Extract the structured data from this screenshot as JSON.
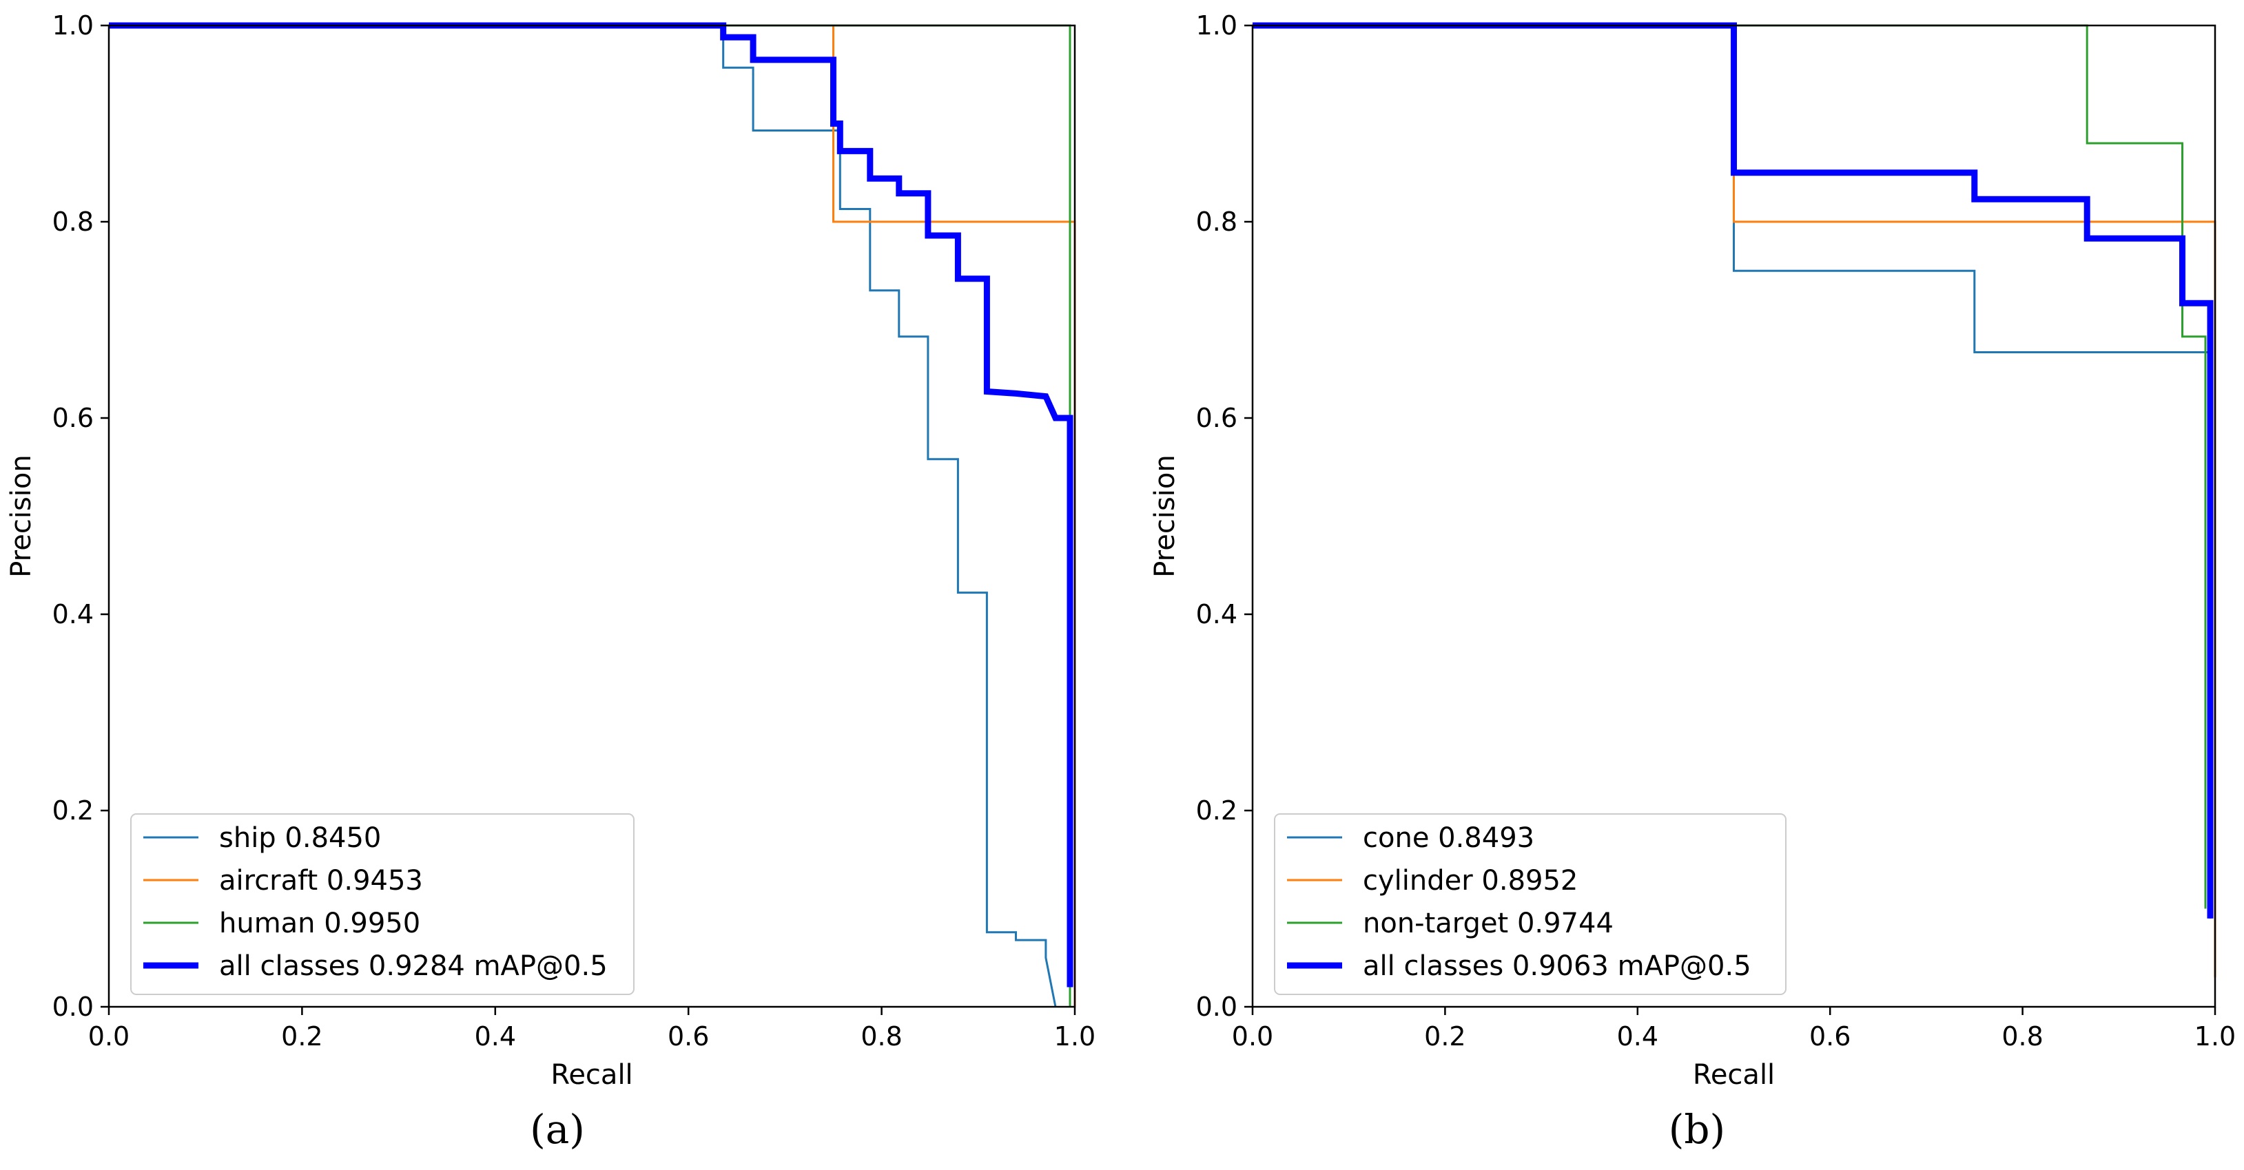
{
  "chart_data": [
    {
      "type": "line",
      "caption": "(a)",
      "xlabel": "Recall",
      "ylabel": "Precision",
      "xlim": [
        0,
        1
      ],
      "ylim": [
        0,
        1
      ],
      "xticks": [
        "0.0",
        "0.2",
        "0.4",
        "0.6",
        "0.8",
        "1.0"
      ],
      "yticks": [
        "0.0",
        "0.2",
        "0.4",
        "0.6",
        "0.8",
        "1.0"
      ],
      "legend_position": "lower-left",
      "series": [
        {
          "name": "ship 0.8450",
          "color": "#1f77b4",
          "bold": false,
          "x": [
            0,
            0.636,
            0.636,
            0.667,
            0.667,
            0.757,
            0.757,
            0.788,
            0.788,
            0.818,
            0.818,
            0.848,
            0.848,
            0.879,
            0.879,
            0.909,
            0.909,
            0.939,
            0.939,
            0.97,
            0.97,
            0.98
          ],
          "y": [
            1,
            1,
            0.957,
            0.957,
            0.893,
            0.893,
            0.813,
            0.813,
            0.73,
            0.73,
            0.683,
            0.683,
            0.558,
            0.558,
            0.422,
            0.422,
            0.076,
            0.076,
            0.068,
            0.068,
            0.05,
            0
          ]
        },
        {
          "name": "aircraft 0.9453",
          "color": "#ff7f0e",
          "bold": false,
          "x": [
            0,
            0.75,
            0.75,
            1,
            1
          ],
          "y": [
            1,
            1,
            0.8,
            0.8,
            0
          ]
        },
        {
          "name": "human 0.9950",
          "color": "#2ca02c",
          "bold": false,
          "x": [
            0,
            0.995,
            0.995
          ],
          "y": [
            1,
            1,
            0
          ]
        },
        {
          "name": "all classes 0.9284 mAP@0.5",
          "color": "#0000ff",
          "bold": true,
          "x": [
            0,
            0.636,
            0.636,
            0.667,
            0.667,
            0.75,
            0.75,
            0.757,
            0.757,
            0.788,
            0.788,
            0.818,
            0.818,
            0.848,
            0.848,
            0.879,
            0.879,
            0.909,
            0.909,
            0.939,
            0.97,
            0.98,
            0.995,
            0.995
          ],
          "y": [
            1,
            1,
            0.988,
            0.988,
            0.965,
            0.965,
            0.9,
            0.9,
            0.872,
            0.872,
            0.844,
            0.844,
            0.829,
            0.829,
            0.786,
            0.786,
            0.742,
            0.742,
            0.627,
            0.625,
            0.622,
            0.6,
            0.6,
            0.02
          ]
        }
      ]
    },
    {
      "type": "line",
      "caption": "(b)",
      "xlabel": "Recall",
      "ylabel": "Precision",
      "xlim": [
        0,
        1
      ],
      "ylim": [
        0,
        1
      ],
      "xticks": [
        "0.0",
        "0.2",
        "0.4",
        "0.6",
        "0.8",
        "1.0"
      ],
      "yticks": [
        "0.0",
        "0.2",
        "0.4",
        "0.6",
        "0.8",
        "1.0"
      ],
      "legend_position": "lower-left",
      "series": [
        {
          "name": "cone 0.8493",
          "color": "#1f77b4",
          "bold": false,
          "x": [
            0,
            0.5,
            0.5,
            0.75,
            0.75,
            0.995,
            0.995
          ],
          "y": [
            1,
            1,
            0.75,
            0.75,
            0.667,
            0.667,
            0.09
          ]
        },
        {
          "name": "cylinder 0.8952",
          "color": "#ff7f0e",
          "bold": false,
          "x": [
            0,
            0.5,
            0.5,
            1,
            1
          ],
          "y": [
            1,
            1,
            0.8,
            0.8,
            0.03
          ]
        },
        {
          "name": "non-target 0.9744",
          "color": "#2ca02c",
          "bold": false,
          "x": [
            0,
            0.867,
            0.867,
            0.966,
            0.966,
            0.99,
            0.99
          ],
          "y": [
            1,
            1,
            0.88,
            0.88,
            0.683,
            0.683,
            0.1
          ]
        },
        {
          "name": "all classes 0.9063 mAP@0.5",
          "color": "#0000ff",
          "bold": true,
          "x": [
            0,
            0.5,
            0.5,
            0.75,
            0.75,
            0.867,
            0.867,
            0.966,
            0.966,
            0.995,
            0.995
          ],
          "y": [
            1,
            1,
            0.85,
            0.85,
            0.823,
            0.823,
            0.783,
            0.783,
            0.717,
            0.717,
            0.09
          ]
        }
      ]
    }
  ]
}
